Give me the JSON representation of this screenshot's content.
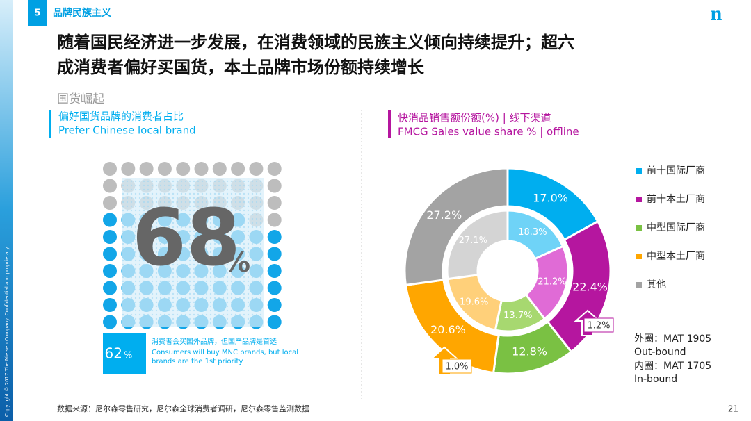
{
  "section": {
    "number": "5",
    "title": "品牌民族主义"
  },
  "logo": "n",
  "headline": [
    "随着国民经济进一步发展，在消费领域的民族主义倾向持续提升；超六",
    "成消费者偏好买国货，本土品牌市场份额持续增长"
  ],
  "subheading": "国货崛起",
  "side_text": "Copyright © 2017 The Nielsen Company. Confidential and proprietary.",
  "source": "数据来源：尼尔森零售研究，尼尔森全球消费者调研，尼尔森零售监测数据",
  "page_number": "21",
  "chart_data": [
    {
      "type": "waffle",
      "title": "偏好国货品牌的消费者占比",
      "subtitle": "Prefer Chinese local brand",
      "value": 68,
      "unit": "%",
      "colors": [
        "#12a6e8",
        "#bdbdbd"
      ],
      "callout": {
        "value": 62,
        "text": [
          "消费者会买国外品牌，但国产品牌是首选",
          "Consumers will buy MNC brands, but local",
          "brands are the 1st priority"
        ]
      }
    },
    {
      "type": "donut",
      "title": "快消品销售额份额(%) | 线下渠道",
      "subtitle": "FMCG Sales value share % | offline",
      "categories": [
        "前十国际厂商",
        "前十本土厂商",
        "中型国际厂商",
        "中型本土厂商",
        "其他"
      ],
      "colors": [
        "#00aeef",
        "#b5169f",
        "#7ac143",
        "#ffa600",
        "#a3a3a3"
      ],
      "series": [
        {
          "values": [
            17.0,
            22.4,
            12.8,
            20.6,
            27.2
          ],
          "value_labels": [
            "17.0%",
            "22.4%",
            "12.8%",
            "20.6%",
            "27.2%"
          ],
          "colors": [
            "#00aeef",
            "#b5169f",
            "#7ac143",
            "#ffa600",
            "#a3a3a3"
          ]
        },
        {
          "values": [
            18.3,
            21.2,
            13.7,
            19.6,
            27.1
          ],
          "value_labels": [
            "18.3%",
            "21.2%",
            "13.7%",
            "19.6%",
            "27.1%"
          ],
          "colors": [
            "#6fd3f7",
            "#e06bd6",
            "#a7d870",
            "#ffd07a",
            "#d4d4d4"
          ]
        }
      ],
      "annotations": [
        "1.2%",
        "1.0%"
      ],
      "notes": [
        "外圈：MAT 1905",
        "Out-bound",
        "内圈：MAT 1705",
        "In-bound"
      ]
    }
  ]
}
